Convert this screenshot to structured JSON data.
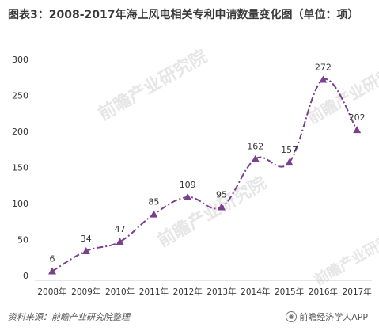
{
  "title": "图表3：2008-2017年海上风电相关专利申请数量变化图（单位：项）",
  "source": "资料来源：前瞻产业研究院整理",
  "brand": "前瞻经济学人APP",
  "watermark": "前瞻产业研究院",
  "colors": {
    "line": "#7b3f8f",
    "marker": "#7b3f8f",
    "axis": "#cccccc",
    "text": "#333333",
    "watermark": "#e6e6e6"
  },
  "chart_data": {
    "type": "line",
    "categories": [
      "2008年",
      "2009年",
      "2010年",
      "2011年",
      "2012年",
      "2013年",
      "2014年",
      "2015年",
      "2016年",
      "2017年"
    ],
    "series": [
      {
        "values": [
          6,
          34,
          47,
          85,
          109,
          95,
          162,
          157,
          272,
          202
        ]
      }
    ],
    "ylim": [
      0,
      300
    ],
    "yticks": [
      0,
      50,
      100,
      150,
      200,
      250,
      300
    ],
    "line_style": "dash-dot, smoothed",
    "marker": "triangle",
    "grid": false,
    "data_labels": true
  }
}
